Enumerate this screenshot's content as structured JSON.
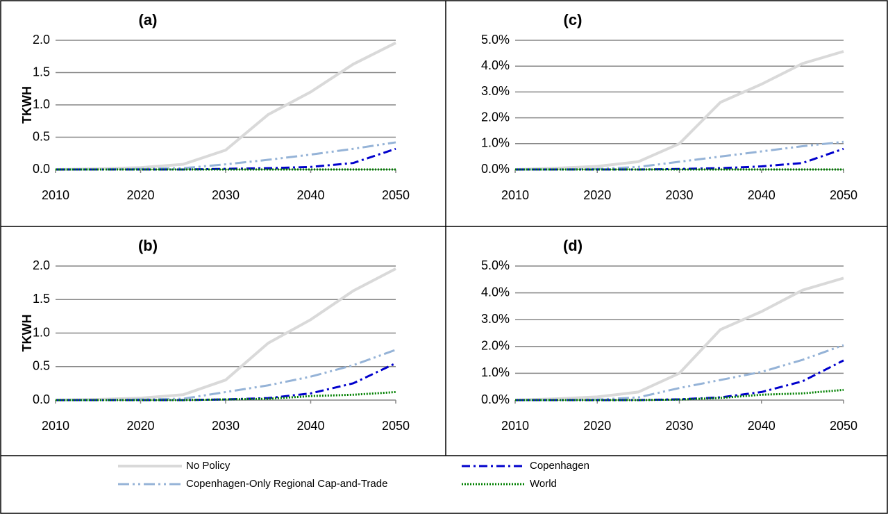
{
  "chart_data": [
    {
      "type": "line",
      "title": "(a)",
      "y_label": "TKWH",
      "x": [
        2010,
        2015,
        2020,
        2025,
        2030,
        2035,
        2040,
        2045,
        2050
      ],
      "xlim": [
        2010,
        2050
      ],
      "xticks": [
        2010,
        2020,
        2030,
        2040,
        2050
      ],
      "ylim": [
        0,
        2
      ],
      "yticks": [
        {
          "value": 0,
          "label": "0.0"
        },
        0.5,
        {
          "value": 1,
          "label": "1.0"
        },
        1.5,
        {
          "value": 2,
          "label": "2.0"
        }
      ],
      "grid": true,
      "series": [
        {
          "name": "No Policy",
          "color": "#d9d9d9",
          "values": [
            0,
            0.01,
            0.03,
            0.08,
            0.3,
            0.85,
            1.2,
            1.63,
            1.96
          ]
        },
        {
          "name": "Copenhagen-Only Regional Cap-and-Trade",
          "color": "#95b3d7",
          "values": [
            0,
            0,
            0.01,
            0.02,
            0.08,
            0.15,
            0.23,
            0.32,
            0.42
          ]
        },
        {
          "name": "Copenhagen",
          "color": "#0000cc",
          "values": [
            0,
            0,
            0,
            0,
            0.01,
            0.02,
            0.04,
            0.1,
            0.32
          ]
        },
        {
          "name": "World",
          "color": "#008000",
          "values": [
            0,
            0,
            0,
            0,
            0,
            0,
            0,
            0,
            0
          ]
        }
      ]
    },
    {
      "type": "line",
      "title": "(b)",
      "y_label": "TKWH",
      "x": [
        2010,
        2015,
        2020,
        2025,
        2030,
        2035,
        2040,
        2045,
        2050
      ],
      "xlim": [
        2010,
        2050
      ],
      "xticks": [
        2010,
        2020,
        2030,
        2040,
        2050
      ],
      "ylim": [
        0,
        2
      ],
      "yticks": [
        {
          "value": 0,
          "label": "0.0"
        },
        0.5,
        {
          "value": 1,
          "label": "1.0"
        },
        1.5,
        {
          "value": 2,
          "label": "2.0"
        }
      ],
      "grid": true,
      "series": [
        {
          "name": "No Policy",
          "color": "#d9d9d9",
          "values": [
            0,
            0.01,
            0.03,
            0.08,
            0.3,
            0.85,
            1.2,
            1.63,
            1.96
          ]
        },
        {
          "name": "Copenhagen-Only Regional Cap-and-Trade",
          "color": "#95b3d7",
          "values": [
            0,
            0,
            0.01,
            0.02,
            0.12,
            0.22,
            0.35,
            0.52,
            0.75
          ]
        },
        {
          "name": "Copenhagen",
          "color": "#0000cc",
          "values": [
            0,
            0,
            0,
            0,
            0.01,
            0.03,
            0.1,
            0.25,
            0.55
          ]
        },
        {
          "name": "World",
          "color": "#008000",
          "values": [
            0,
            0,
            0,
            0,
            0.01,
            0.02,
            0.06,
            0.08,
            0.12
          ]
        }
      ]
    },
    {
      "type": "line",
      "title": "(c)",
      "x": [
        2010,
        2015,
        2020,
        2025,
        2030,
        2035,
        2040,
        2045,
        2050
      ],
      "xlim": [
        2010,
        2050
      ],
      "xticks": [
        2010,
        2020,
        2030,
        2040,
        2050
      ],
      "ylim": [
        0,
        5
      ],
      "yticks": [
        {
          "value": 0,
          "label": "0.0%"
        },
        {
          "value": 1,
          "label": "1.0%"
        },
        {
          "value": 2,
          "label": "2.0%"
        },
        {
          "value": 3,
          "label": "3.0%"
        },
        {
          "value": 4,
          "label": "4.0%"
        },
        {
          "value": 5,
          "label": "5.0%"
        }
      ],
      "grid": true,
      "series": [
        {
          "name": "No Policy",
          "color": "#d9d9d9",
          "values": [
            0,
            0.05,
            0.12,
            0.3,
            1.0,
            2.6,
            3.3,
            4.1,
            4.57
          ]
        },
        {
          "name": "Copenhagen-Only Regional Cap-and-Trade",
          "color": "#95b3d7",
          "values": [
            0,
            0,
            0.02,
            0.1,
            0.3,
            0.5,
            0.7,
            0.9,
            1.07
          ]
        },
        {
          "name": "Copenhagen",
          "color": "#0000cc",
          "values": [
            0,
            0,
            0,
            0,
            0.02,
            0.05,
            0.12,
            0.25,
            0.8
          ]
        },
        {
          "name": "World",
          "color": "#008000",
          "values": [
            0,
            0,
            0,
            0,
            0,
            0,
            0,
            0,
            0
          ]
        }
      ]
    },
    {
      "type": "line",
      "title": "(d)",
      "x": [
        2010,
        2015,
        2020,
        2025,
        2030,
        2035,
        2040,
        2045,
        2050
      ],
      "xlim": [
        2010,
        2050
      ],
      "xticks": [
        2010,
        2020,
        2030,
        2040,
        2050
      ],
      "ylim": [
        0,
        5
      ],
      "yticks": [
        {
          "value": 0,
          "label": "0.0%"
        },
        {
          "value": 1,
          "label": "1.0%"
        },
        {
          "value": 2,
          "label": "2.0%"
        },
        {
          "value": 3,
          "label": "3.0%"
        },
        {
          "value": 4,
          "label": "4.0%"
        },
        {
          "value": 5,
          "label": "5.0%"
        }
      ],
      "grid": true,
      "series": [
        {
          "name": "No Policy",
          "color": "#d9d9d9",
          "values": [
            0,
            0.05,
            0.12,
            0.3,
            1.0,
            2.63,
            3.3,
            4.1,
            4.55
          ]
        },
        {
          "name": "Copenhagen-Only Regional Cap-and-Trade",
          "color": "#95b3d7",
          "values": [
            0,
            0,
            0.02,
            0.1,
            0.45,
            0.75,
            1.05,
            1.5,
            2.05
          ]
        },
        {
          "name": "Copenhagen",
          "color": "#0000cc",
          "values": [
            0,
            0,
            0,
            0,
            0.03,
            0.1,
            0.3,
            0.7,
            1.48
          ]
        },
        {
          "name": "World",
          "color": "#008000",
          "values": [
            0,
            0,
            0,
            0,
            0.02,
            0.08,
            0.2,
            0.25,
            0.38
          ]
        }
      ]
    }
  ]
}
